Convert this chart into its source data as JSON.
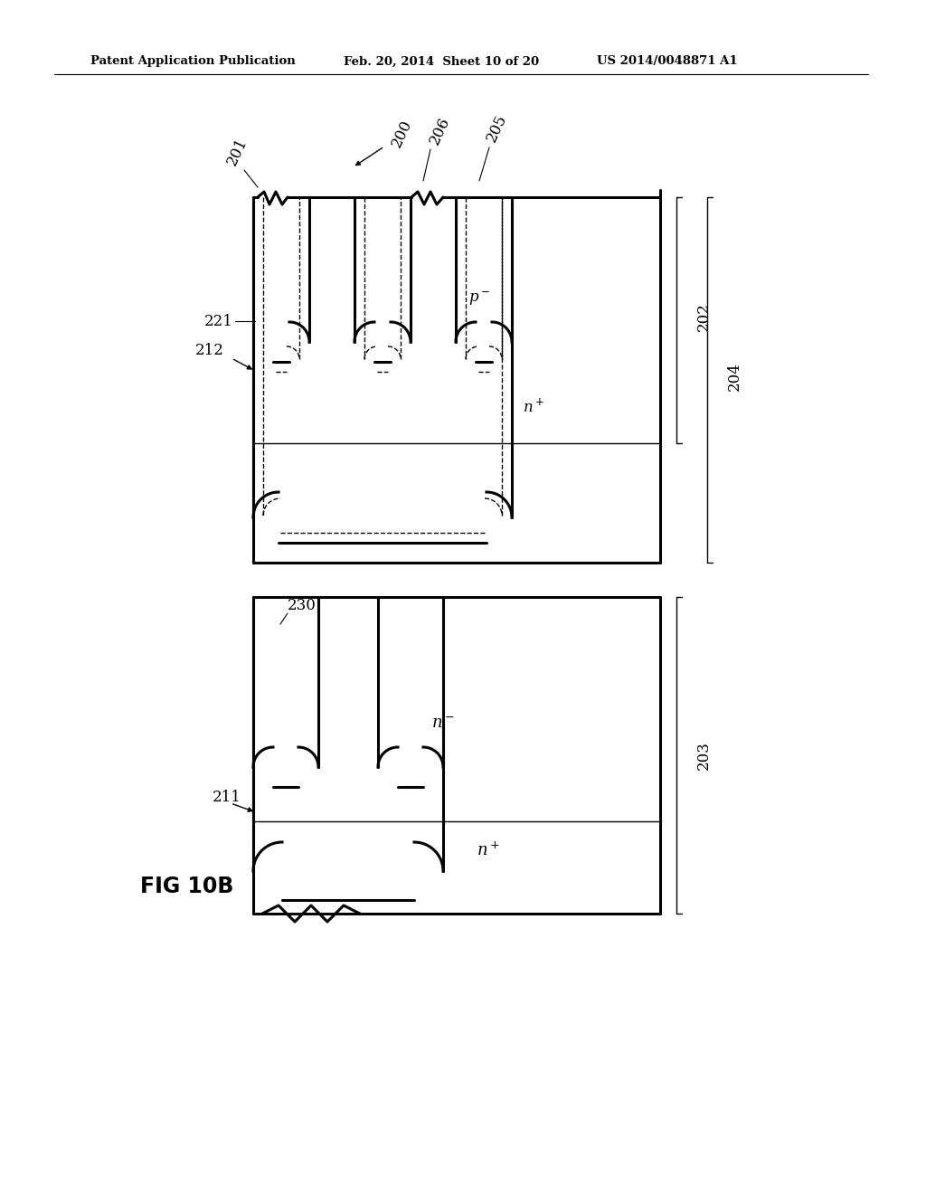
{
  "bg_color": "#ffffff",
  "line_color": "#000000",
  "header_line1": "Patent Application Publication",
  "header_line2": "Feb. 20, 2014  Sheet 10 of 20",
  "header_line3": "US 2014/0048871 A1",
  "fig_label": "FIG 10B"
}
